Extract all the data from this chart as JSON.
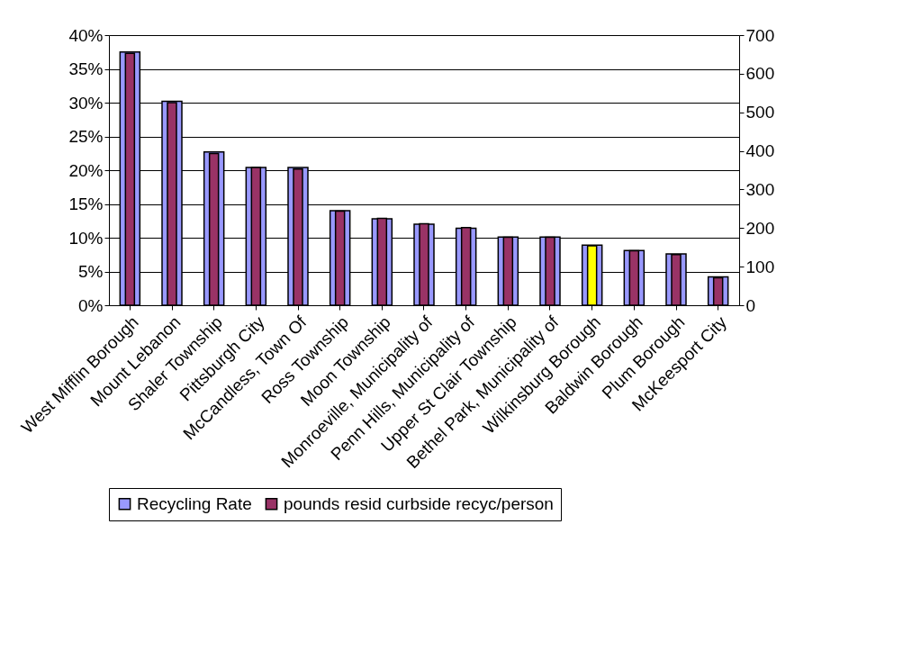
{
  "chart_data": {
    "type": "bar",
    "categories": [
      "West Mifflin Borough",
      "Mount Lebanon",
      "Shaler Township",
      "Pittsburgh City",
      "McCandless, Town Of",
      "Ross Township",
      "Moon Township",
      "Monroeville, Municipality of",
      "Penn Hills, Municipality of",
      "Upper St Clair Township",
      "Bethel Park, Municipality of",
      "Wilkinsburg Borough",
      "Baldwin Borough",
      "Plum Borough",
      "McKeesport City"
    ],
    "series": [
      {
        "name": "Recycling Rate",
        "color": "#9999ff",
        "values": [
          37.5,
          30.2,
          22.7,
          20.4,
          20.4,
          14.0,
          12.8,
          12.0,
          11.4,
          10.1,
          10.1,
          8.9,
          8.1,
          7.6,
          4.2
        ]
      },
      {
        "name": "pounds resid curbside recyc/person",
        "color": "#993366",
        "axis": "y2",
        "colors": [
          "#993366",
          "#993366",
          "#993366",
          "#993366",
          "#993366",
          "#993366",
          "#993366",
          "#993366",
          "#993366",
          "#993366",
          "#993366",
          "#ffff00",
          "#993366",
          "#993366",
          "#993366"
        ],
        "values": [
          653,
          525,
          393,
          357,
          353,
          244,
          225,
          211,
          201,
          176,
          176,
          154,
          141,
          131,
          71
        ]
      }
    ],
    "ylim": [
      0,
      40
    ],
    "yticks": [
      {
        "value": 0,
        "label": "0%"
      },
      {
        "value": 5,
        "label": "5%"
      },
      {
        "value": 10,
        "label": "10%"
      },
      {
        "value": 15,
        "label": "15%"
      },
      {
        "value": 20,
        "label": "20%"
      },
      {
        "value": 25,
        "label": "25%"
      },
      {
        "value": 30,
        "label": "30%"
      },
      {
        "value": 35,
        "label": "35%"
      },
      {
        "value": 40,
        "label": "40%"
      }
    ],
    "y2lim": [
      0,
      700
    ],
    "y2ticks": [
      0,
      100,
      200,
      300,
      400,
      500,
      600,
      700
    ],
    "grid": "y",
    "legend": "bottom"
  }
}
